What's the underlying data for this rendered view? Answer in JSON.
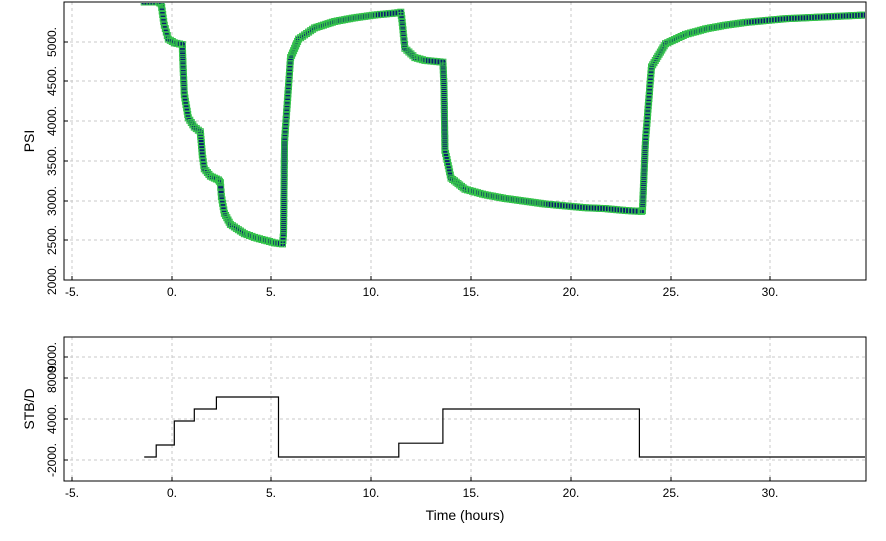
{
  "chart_data": [
    {
      "type": "scatter",
      "ylabel": "PSI",
      "xlim": [
        -5,
        35
      ],
      "ylim": [
        2000,
        5000
      ],
      "xticks": [
        "-5.",
        "0.",
        "5.",
        "10.",
        "15.",
        "20.",
        "25.",
        "30."
      ],
      "yticks": [
        "2000.",
        "2500.",
        "3000.",
        "3500.",
        "4000.",
        "4500.",
        "5000."
      ],
      "grid": true,
      "colors": {
        "measured_points": "#33c24a",
        "simulated_line": "#0b1f6e"
      },
      "series": [
        {
          "x": [
            -1.0,
            -0.3,
            -0.15,
            0.0,
            0.2,
            0.5,
            0.9,
            0.92,
            1.0,
            1.2,
            1.5,
            1.8,
            1.82,
            1.9,
            2.0,
            2.3,
            2.7,
            2.8,
            2.85,
            3.0,
            3.3,
            4.0,
            4.5,
            5.0,
            5.5,
            5.9,
            5.95,
            6.0,
            6.3,
            6.7,
            7.5,
            8.5,
            9.5,
            10.5,
            11.5,
            11.8,
            11.85,
            12.0,
            12.5,
            13.0,
            13.9,
            13.95,
            14.0,
            14.3,
            15.0,
            16.0,
            17.0,
            18.0,
            19.0,
            20.0,
            21.0,
            22.0,
            23.0,
            23.8,
            23.85,
            24.0,
            24.3,
            25.0,
            26.0,
            27.0,
            28.0,
            29.0,
            30.0,
            31.0,
            32.0,
            33.0,
            34.0,
            35.0
          ],
          "y": [
            5000,
            5000,
            4980,
            4750,
            4600,
            4560,
            4540,
            4400,
            4000,
            3750,
            3650,
            3600,
            3550,
            3350,
            3200,
            3120,
            3080,
            3050,
            2900,
            2720,
            2600,
            2500,
            2460,
            2430,
            2400,
            2390,
            2500,
            3500,
            4400,
            4600,
            4720,
            4790,
            4830,
            4860,
            4880,
            4890,
            4820,
            4500,
            4400,
            4370,
            4350,
            4100,
            3400,
            3100,
            2980,
            2920,
            2880,
            2850,
            2820,
            2800,
            2780,
            2770,
            2750,
            2740,
            2750,
            3500,
            4300,
            4550,
            4650,
            4710,
            4750,
            4780,
            4800,
            4820,
            4830,
            4840,
            4850,
            4860
          ]
        }
      ]
    },
    {
      "type": "line",
      "xlabel": "Time (hours)",
      "ylabel": "STB/D",
      "xlim": [
        -5,
        35
      ],
      "ylim": [
        -2000,
        10000
      ],
      "xticks": [
        "-5.",
        "0.",
        "5.",
        "10.",
        "15.",
        "20.",
        "25.",
        "30."
      ],
      "yticks": [
        "-2000.",
        "4000.",
        "8000.",
        "9000."
      ],
      "grid": true,
      "colors": {
        "rate_line": "#000000"
      },
      "series": [
        {
          "x": [
            -1.0,
            -0.4,
            -0.4,
            0.5,
            0.5,
            1.5,
            1.5,
            2.6,
            2.6,
            5.7,
            5.7,
            11.7,
            11.7,
            13.9,
            13.9,
            23.7,
            23.7,
            35.0
          ],
          "y": [
            0,
            0,
            1000,
            1000,
            3000,
            3000,
            4000,
            4000,
            5000,
            5000,
            0,
            0,
            1150,
            1150,
            4000,
            4000,
            0,
            0
          ]
        }
      ]
    }
  ]
}
